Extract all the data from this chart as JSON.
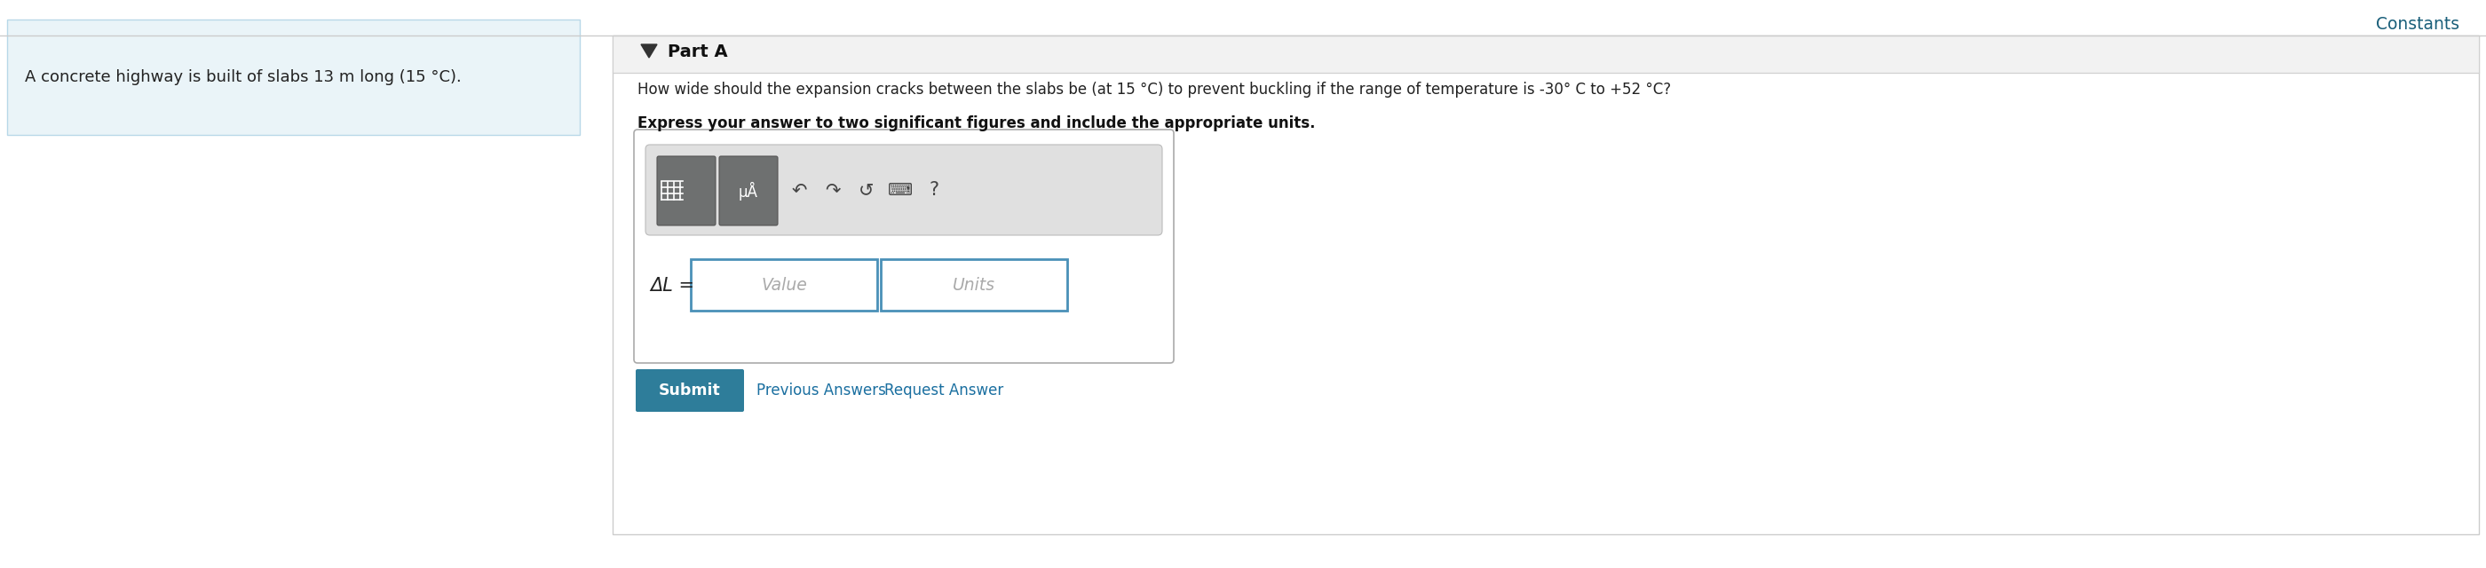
{
  "constants_text": "Constants",
  "constants_color": "#1a5f7a",
  "left_box_text": "A concrete highway is built of slabs 13 m long (15 °C).",
  "left_box_bg": "#eaf4f8",
  "left_box_border": "#b8d8e8",
  "part_a_label": "Part A",
  "part_a_bg": "#f2f2f2",
  "part_a_border": "#d0d0d0",
  "question_text": "How wide should the expansion cracks between the slabs be (at 15 °C) to prevent buckling if the range of temperature is -30° C to +52 °C?",
  "bold_text": "Express your answer to two significant figures and include the appropriate units.",
  "delta_l_label": "ΔL =",
  "value_placeholder": "Value",
  "units_placeholder": "Units",
  "submit_text": "Submit",
  "submit_bg": "#2e7d9a",
  "prev_answers_text": "Previous Answers",
  "request_answer_text": "Request Answer",
  "link_color": "#1a6fa0",
  "toolbar_bg": "#e0e0e0",
  "input_border": "#4a90b8",
  "main_panel_border": "#cccccc",
  "main_panel_bg": "#ffffff",
  "fig_bg": "#ffffff",
  "separator_color": "#cccccc",
  "btn_color": "#6e7070",
  "icon_color": "#444444"
}
